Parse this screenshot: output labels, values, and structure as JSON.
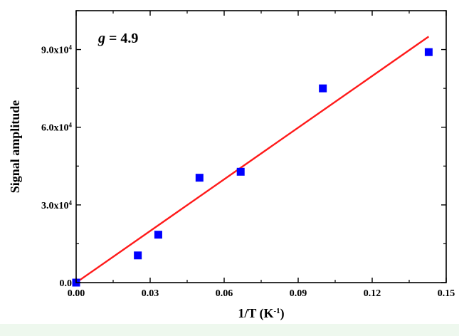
{
  "chart_data": {
    "type": "scatter",
    "xlabel_main": "1/T (K",
    "xlabel_sup": "-1",
    "xlabel_close": ")",
    "ylabel": "Signal amplitude",
    "annotation": {
      "var": "g",
      "rest": " = 4.9"
    },
    "xlim": [
      0,
      0.15
    ],
    "ylim": [
      0,
      105000
    ],
    "x_ticks": [
      {
        "value": 0.0,
        "label": "0.00"
      },
      {
        "value": 0.03,
        "label": "0.03"
      },
      {
        "value": 0.06,
        "label": "0.06"
      },
      {
        "value": 0.09,
        "label": "0.09"
      },
      {
        "value": 0.12,
        "label": "0.12"
      },
      {
        "value": 0.15,
        "label": "0.15"
      }
    ],
    "y_ticks": [
      {
        "value": 0,
        "mantissa": "0.0",
        "exp": ""
      },
      {
        "value": 30000,
        "mantissa": "3.0x10",
        "exp": "4"
      },
      {
        "value": 60000,
        "mantissa": "6.0x10",
        "exp": "4"
      },
      {
        "value": 90000,
        "mantissa": "9.0x10",
        "exp": "4"
      }
    ],
    "points": [
      {
        "x": 0.0,
        "y": 0
      },
      {
        "x": 0.025,
        "y": 10500
      },
      {
        "x": 0.0333,
        "y": 18500
      },
      {
        "x": 0.05,
        "y": 40500
      },
      {
        "x": 0.0667,
        "y": 42800
      },
      {
        "x": 0.1,
        "y": 75000
      },
      {
        "x": 0.1429,
        "y": 89000
      }
    ],
    "fit_line": {
      "x": [
        0.0,
        0.1429
      ],
      "y": [
        0,
        95000
      ]
    },
    "colors": {
      "points": "#0000ff",
      "fit": "#ff1a1a",
      "axis": "#000000",
      "bottom_band": "#eef8ee"
    }
  }
}
